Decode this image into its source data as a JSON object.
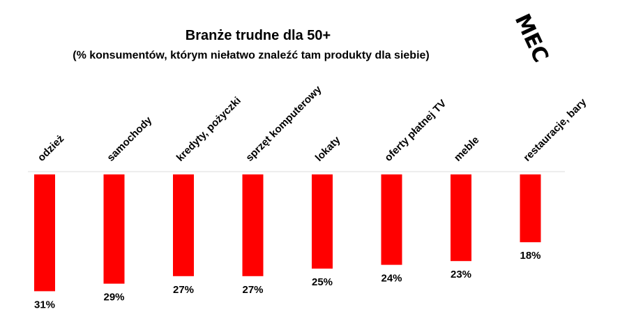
{
  "logo": "MEC",
  "chart_data": {
    "type": "bar",
    "title": "Branże trudne dla 50+",
    "subtitle": "(% konsumentów, którym niełatwo znaleźć tam produkty dla siebie)",
    "categories": [
      "odzież",
      "samochody",
      "kredyty, pożyczki",
      "sprzęt komputerowy",
      "lokaty",
      "oferty płatnej TV",
      "meble",
      "restauracje, bary"
    ],
    "values": [
      31,
      29,
      27,
      27,
      25,
      24,
      23,
      18
    ],
    "value_labels": [
      "31%",
      "29%",
      "27%",
      "27%",
      "25%",
      "24%",
      "23%",
      "18%"
    ],
    "color": "#ff0000"
  }
}
